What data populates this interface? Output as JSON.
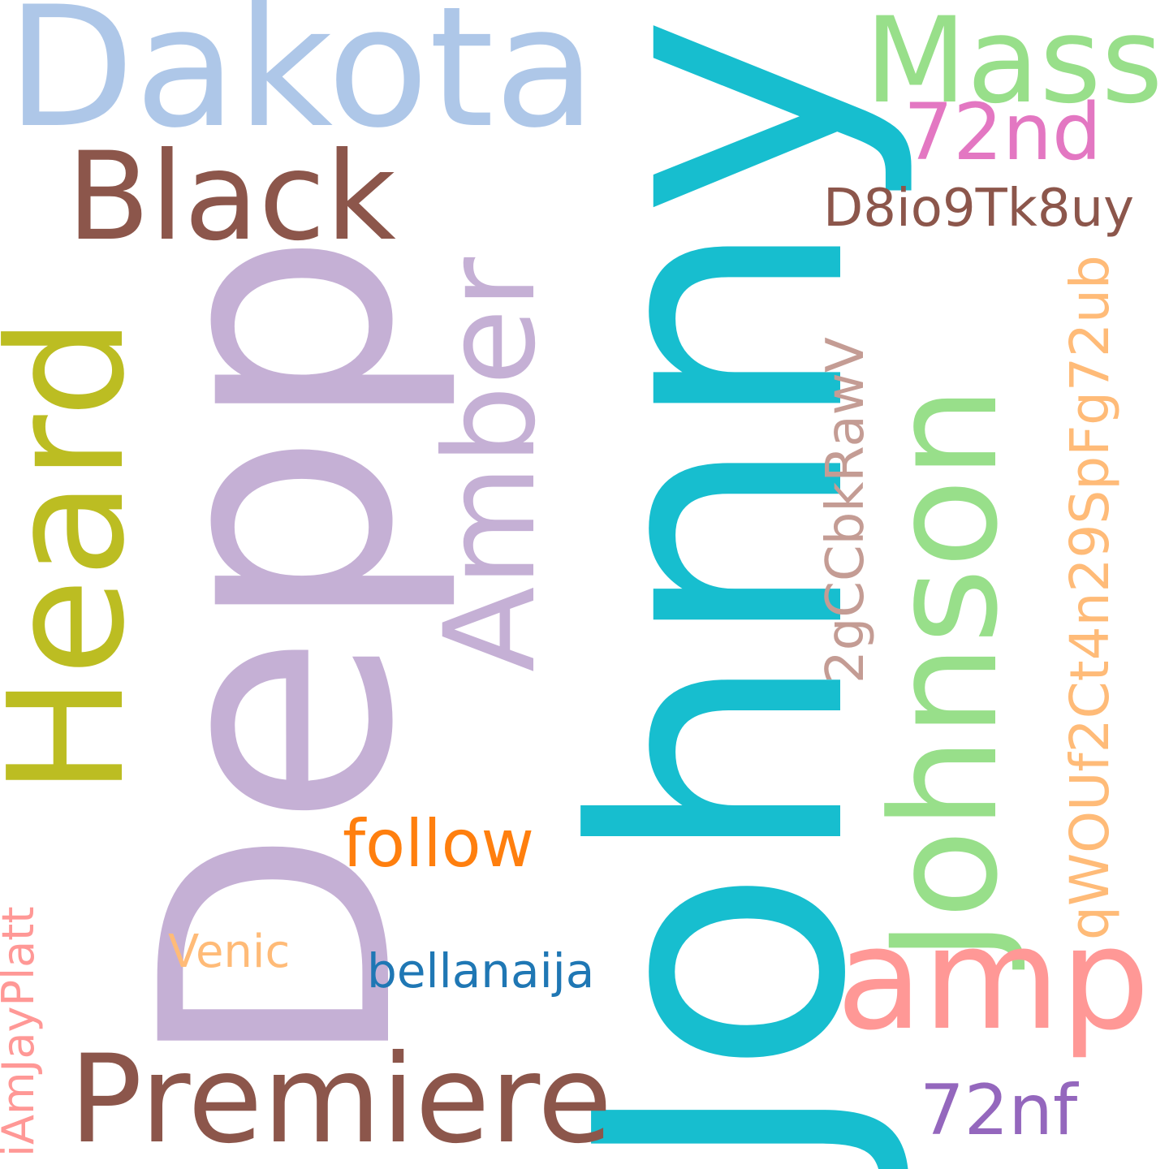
{
  "words": {
    "johnny": {
      "text": "Johnny",
      "color": "#17becf"
    },
    "depp": {
      "text": "Depp",
      "color": "#c5b0d5"
    },
    "dakota": {
      "text": "Dakota",
      "color": "#aec7e8"
    },
    "mass": {
      "text": "Mass",
      "color": "#98df8a"
    },
    "black": {
      "text": "Black",
      "color": "#8c564b"
    },
    "amber": {
      "text": "Amber",
      "color": "#c5b0d5"
    },
    "n72nd": {
      "text": "72nd",
      "color": "#e377c2"
    },
    "d8io": {
      "text": "D8io9Tk8uy",
      "color": "#8c564b"
    },
    "heard": {
      "text": "Heard",
      "color": "#bcbd22"
    },
    "johnson": {
      "text": "Johnson",
      "color": "#98df8a"
    },
    "qwouf": {
      "text": "qWOUf2Ct4n29SpFg72ub",
      "color": "#ffbb78"
    },
    "gcc": {
      "text": "2gCCbkRawV",
      "color": "#c49c94"
    },
    "follow": {
      "text": "follow",
      "color": "#ff7f0e"
    },
    "amp": {
      "text": "amp",
      "color": "#ff9896"
    },
    "venic": {
      "text": "Venic",
      "color": "#ffbb78"
    },
    "bellanaija": {
      "text": "bellanaija",
      "color": "#1f77b4"
    },
    "iamjay": {
      "text": "iAmJayPlatt",
      "color": "#ff9896"
    },
    "premiere": {
      "text": "Premiere",
      "color": "#8c564b"
    },
    "n72nf": {
      "text": "72nf",
      "color": "#9467bd"
    }
  }
}
